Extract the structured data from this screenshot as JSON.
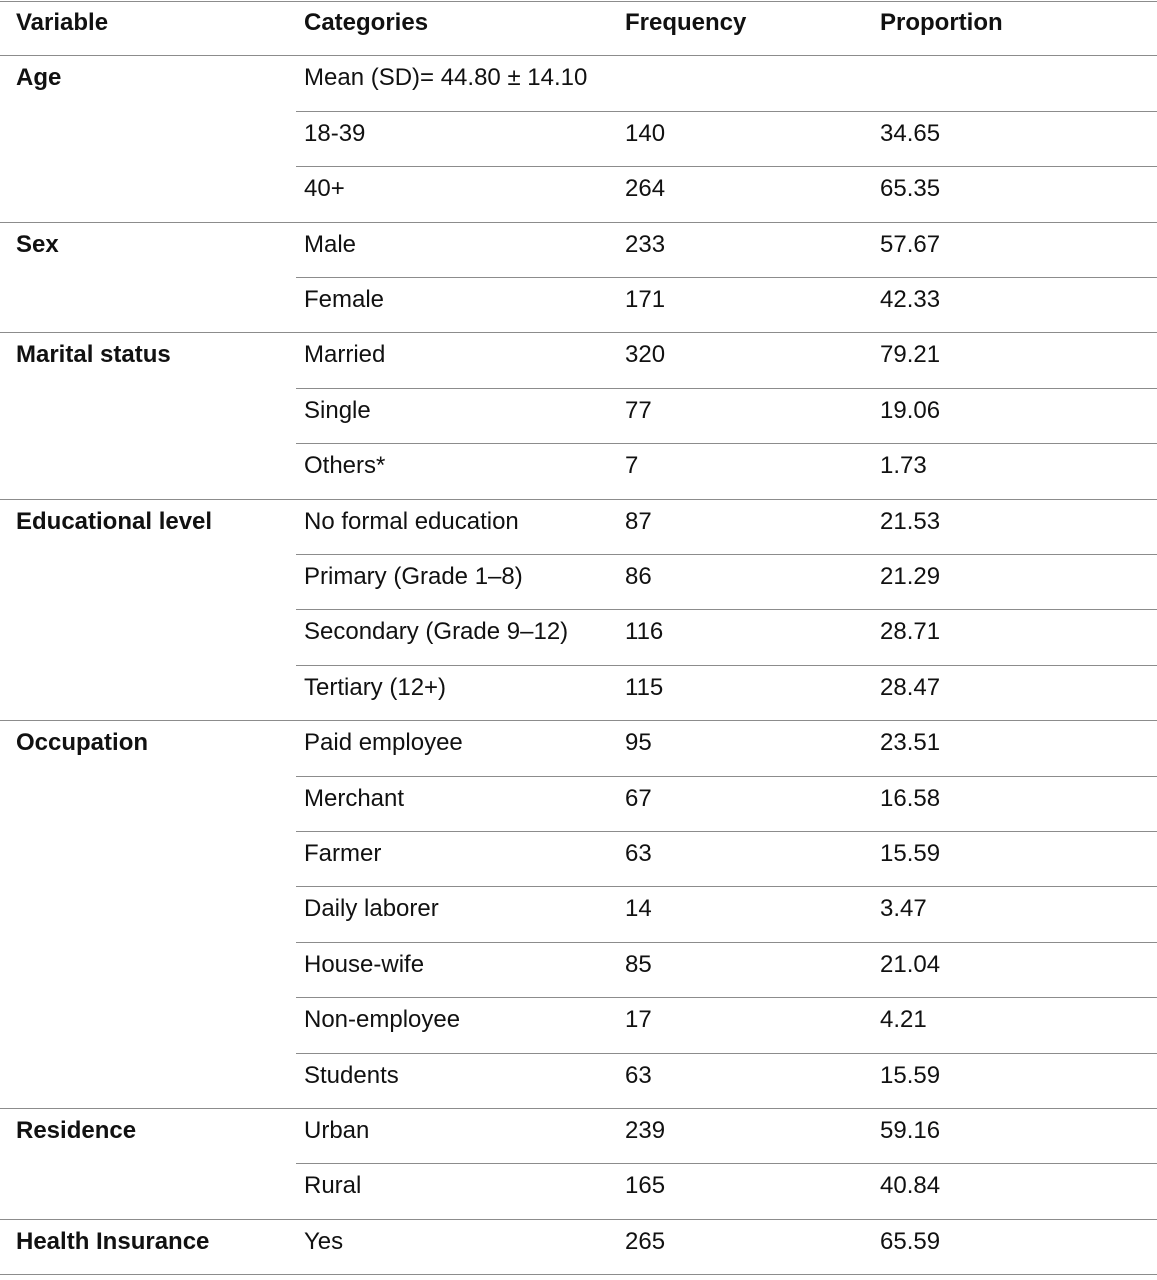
{
  "table": {
    "headers": {
      "variable": "Variable",
      "categories": "Categories",
      "frequency": "Frequency",
      "proportion": "Proportion"
    },
    "groups": [
      {
        "variable": "Age",
        "rows": [
          {
            "category": "Mean (SD)= 44.80 ± 14.10",
            "frequency": "",
            "proportion": ""
          },
          {
            "category": "18-39",
            "frequency": "140",
            "proportion": "34.65"
          },
          {
            "category": "40+",
            "frequency": "264",
            "proportion": "65.35"
          }
        ]
      },
      {
        "variable": "Sex",
        "rows": [
          {
            "category": "Male",
            "frequency": "233",
            "proportion": "57.67"
          },
          {
            "category": "Female",
            "frequency": "171",
            "proportion": "42.33"
          }
        ]
      },
      {
        "variable": "Marital status",
        "rows": [
          {
            "category": "Married",
            "frequency": "320",
            "proportion": "79.21"
          },
          {
            "category": "Single",
            "frequency": "77",
            "proportion": "19.06"
          },
          {
            "category": "Others*",
            "frequency": "7",
            "proportion": "1.73"
          }
        ]
      },
      {
        "variable": "Educational level",
        "rows": [
          {
            "category": "No formal education",
            "frequency": "87",
            "proportion": "21.53"
          },
          {
            "category": "Primary (Grade 1–8)",
            "frequency": "86",
            "proportion": "21.29"
          },
          {
            "category": "Secondary (Grade 9–12)",
            "frequency": "116",
            "proportion": "28.71"
          },
          {
            "category": "Tertiary (12+)",
            "frequency": "115",
            "proportion": "28.47"
          }
        ]
      },
      {
        "variable": "Occupation",
        "rows": [
          {
            "category": "Paid employee",
            "frequency": "95",
            "proportion": "23.51"
          },
          {
            "category": "Merchant",
            "frequency": "67",
            "proportion": "16.58"
          },
          {
            "category": "Farmer",
            "frequency": "63",
            "proportion": "15.59"
          },
          {
            "category": "Daily laborer",
            "frequency": "14",
            "proportion": "3.47"
          },
          {
            "category": "House-wife",
            "frequency": "85",
            "proportion": "21.04"
          },
          {
            "category": "Non-employee",
            "frequency": "17",
            "proportion": "4.21"
          },
          {
            "category": "Students",
            "frequency": "63",
            "proportion": "15.59"
          }
        ]
      },
      {
        "variable": "Residence",
        "rows": [
          {
            "category": "Urban",
            "frequency": "239",
            "proportion": "59.16"
          },
          {
            "category": "Rural",
            "frequency": "165",
            "proportion": "40.84"
          }
        ]
      },
      {
        "variable": "Health Insurance",
        "rows": [
          {
            "category": "Yes",
            "frequency": "265",
            "proportion": "65.59"
          }
        ]
      }
    ]
  }
}
